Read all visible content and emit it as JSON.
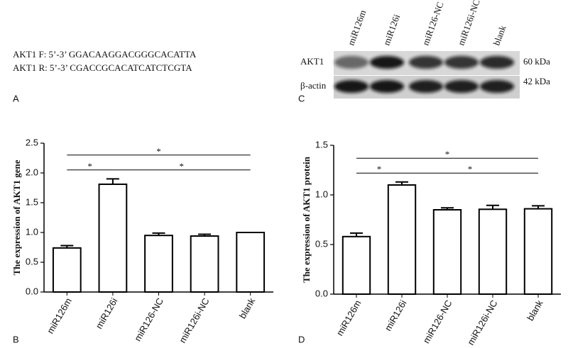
{
  "primers": [
    "AKT1 F: 5’-3’ GGACAAGGACGGGCACATTA",
    "AKT1 R: 5’-3’ CGACCGCACATCATCTCGTA"
  ],
  "panel_labels": [
    "A",
    "C",
    "B",
    "D"
  ],
  "blot": {
    "lanes": [
      "miR126m",
      "miR126i",
      "miR126-NC",
      "miR126i-NC",
      "blank"
    ],
    "rows": [
      {
        "name": "AKT1",
        "size": "60 kDa"
      },
      {
        "name": "β-actin",
        "size": "42 kDa"
      }
    ]
  },
  "chart_data": [
    {
      "type": "bar",
      "y_label": "The expression of AKT1 gene",
      "categories": [
        "miR126m",
        "miR126i",
        "miR126-NC",
        "miR126i-NC",
        "blank"
      ],
      "values": [
        0.74,
        1.81,
        0.95,
        0.94,
        1.0
      ],
      "errors": [
        0.04,
        0.09,
        0.04,
        0.03,
        0.0
      ],
      "color": "#ffffff",
      "ylim": [
        0,
        2.5
      ],
      "yticks": [
        {
          "value": 0,
          "label": "0.0"
        },
        0.5,
        {
          "value": 1,
          "label": "1.0"
        },
        1.5,
        {
          "value": 2,
          "label": "2.0"
        },
        2.5
      ],
      "significance": [
        {
          "pair": [
            "miR126m",
            "miR126i"
          ],
          "label": "*"
        },
        {
          "pair": [
            "miR126i",
            "blank"
          ],
          "label": "*"
        },
        {
          "pair": [
            "miR126m",
            "blank"
          ],
          "label": "*"
        }
      ]
    },
    {
      "type": "bar",
      "y_label": "The expression of AKT1 protein",
      "categories": [
        "miR126m",
        "miR126i",
        "miR126-NC",
        "miR126i-NC",
        "blank"
      ],
      "values": [
        0.58,
        1.1,
        0.85,
        0.855,
        0.86
      ],
      "errors": [
        0.035,
        0.03,
        0.02,
        0.04,
        0.03
      ],
      "color": "#ffffff",
      "ylim": [
        0,
        1.5
      ],
      "yticks": [
        {
          "value": 0,
          "label": "0.0"
        },
        0.5,
        {
          "value": 1,
          "label": "1.0"
        },
        1.5
      ],
      "significance": [
        {
          "pair": [
            "miR126m",
            "miR126i"
          ],
          "label": "*"
        },
        {
          "pair": [
            "miR126i",
            "blank"
          ],
          "label": "*"
        },
        {
          "pair": [
            "miR126m",
            "blank"
          ],
          "label": "*"
        }
      ]
    }
  ]
}
